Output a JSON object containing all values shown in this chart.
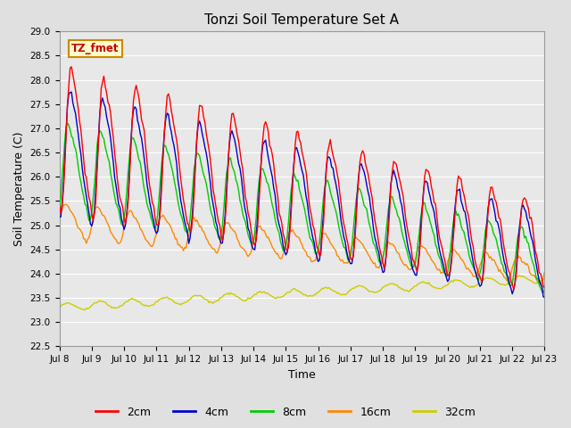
{
  "title": "Tonzi Soil Temperature Set A",
  "xlabel": "Time",
  "ylabel": "Soil Temperature (C)",
  "annotation": "TZ_fmet",
  "ylim": [
    22.5,
    29.0
  ],
  "yticks": [
    22.5,
    23.0,
    23.5,
    24.0,
    24.5,
    25.0,
    25.5,
    26.0,
    26.5,
    27.0,
    27.5,
    28.0,
    28.5,
    29.0
  ],
  "colors": {
    "2cm": "#ff0000",
    "4cm": "#0000cc",
    "8cm": "#00cc00",
    "16cm": "#ff8800",
    "32cm": "#cccc00"
  },
  "legend_labels": [
    "2cm",
    "4cm",
    "8cm",
    "16cm",
    "32cm"
  ],
  "xtick_labels": [
    "Jul 8",
    "Jul 9",
    "Jul 10",
    "Jul 11",
    "Jul 12",
    "Jul 13",
    "Jul 14",
    "Jul 15",
    "Jul 16",
    "Jul 17",
    "Jul 18",
    "Jul 19",
    "Jul 20",
    "Jul 21",
    "Jul 22",
    "Jul 23"
  ],
  "background_color": "#e0e0e0",
  "plot_bg_color": "#e8e8e8",
  "grid_color": "#ffffff",
  "annotation_bg": "#ffffcc",
  "annotation_border": "#cc8800",
  "figsize": [
    6.4,
    4.8
  ],
  "dpi": 100
}
